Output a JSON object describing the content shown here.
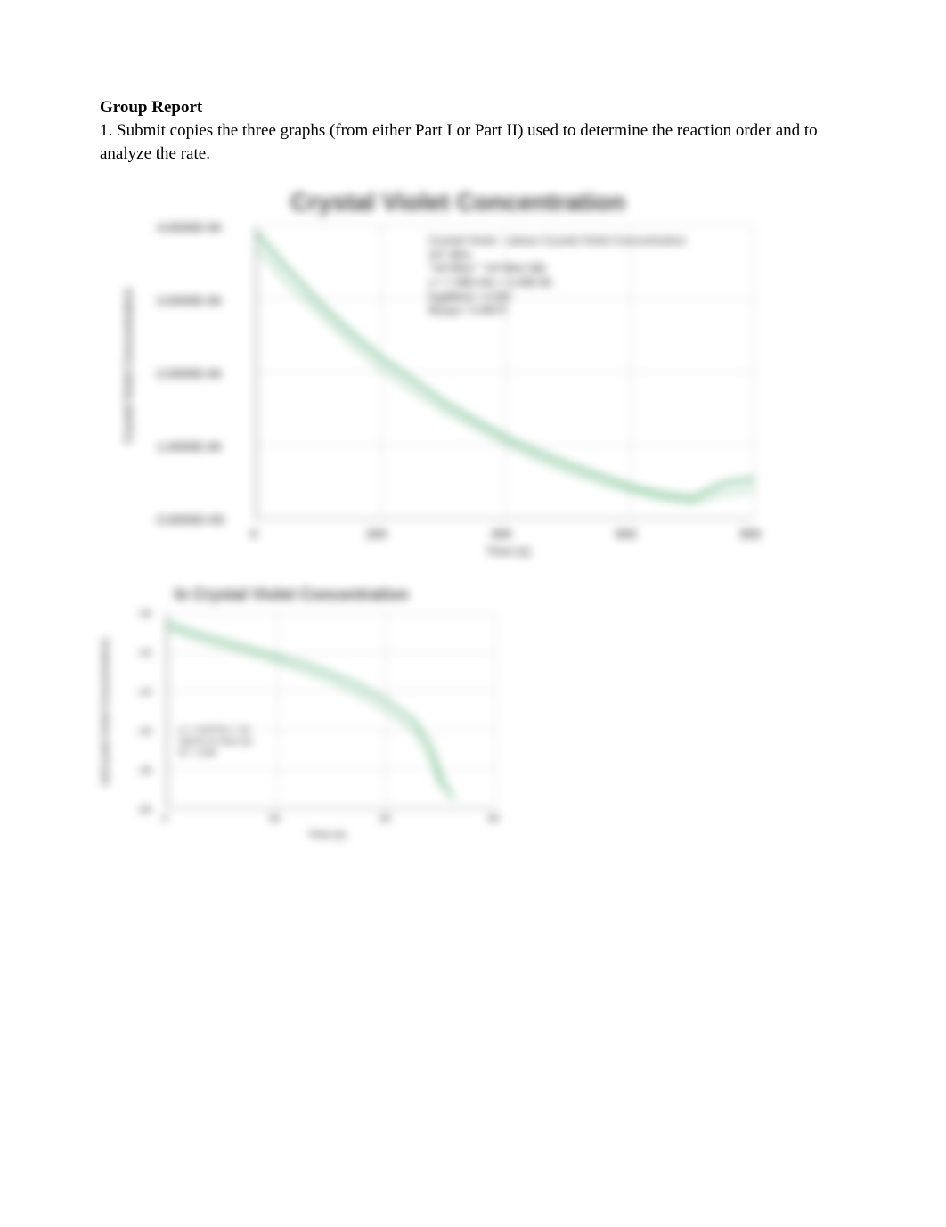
{
  "header": {
    "title": "Group Report",
    "instruction": "1. Submit copies the three graphs (from either Part I or Part II) used to determine the reaction order and to analyze the rate."
  },
  "chart1": {
    "type": "line",
    "title": "Crystal Violet Concentration",
    "title_fontsize": 28,
    "title_color": "#4a4a4a",
    "xlabel": "Time (s)",
    "ylabel": "Crystal Violet Concentration",
    "label_fontsize": 13,
    "x_ticks": [
      "0",
      "200",
      "400",
      "600",
      "800"
    ],
    "y_ticks": [
      "0.0000E+00",
      "1.0000E-06",
      "2.0000E-06",
      "3.0000E-06",
      "4.0000E-06"
    ],
    "xlim": [
      0,
      800
    ],
    "ylim": [
      0,
      4e-06
    ],
    "legend": {
      "lines": [
        "Crystal Violet - values Crystal Violet Concentration",
        "10^ M/m",
        "\"10^M/m\" \"10^M/m\"(B)",
        "y = 7.48E-04x + 0.40E-06",
        "log(M/m) + 0.097",
        "R(sqr) = 0.967/7"
      ],
      "fontsize": 12,
      "color": "#6a6a6a"
    },
    "series": [
      {
        "name": "concentration-curve-1",
        "color": "#8fc9a3",
        "stroke_width": 5,
        "points": [
          [
            0,
            3.9e-06
          ],
          [
            50,
            3.4e-06
          ],
          [
            100,
            2.95e-06
          ],
          [
            150,
            2.55e-06
          ],
          [
            200,
            2.2e-06
          ],
          [
            250,
            1.9e-06
          ],
          [
            300,
            1.6e-06
          ],
          [
            350,
            1.35e-06
          ],
          [
            400,
            1.12e-06
          ],
          [
            450,
            9.2e-07
          ],
          [
            500,
            7.5e-07
          ],
          [
            550,
            6e-07
          ],
          [
            600,
            4.5e-07
          ],
          [
            650,
            3.5e-07
          ],
          [
            700,
            3e-07
          ],
          [
            750,
            5e-07
          ],
          [
            800,
            5.5e-07
          ]
        ]
      },
      {
        "name": "concentration-curve-2",
        "color": "#a8d4b5",
        "stroke_width": 3,
        "points": [
          [
            0,
            3.7e-06
          ],
          [
            50,
            3.2e-06
          ],
          [
            100,
            2.8e-06
          ],
          [
            150,
            2.4e-06
          ],
          [
            200,
            2.05e-06
          ],
          [
            250,
            1.75e-06
          ],
          [
            300,
            1.48e-06
          ],
          [
            350,
            1.25e-06
          ],
          [
            400,
            1.02e-06
          ],
          [
            450,
            8.2e-07
          ],
          [
            500,
            6.5e-07
          ],
          [
            550,
            5e-07
          ],
          [
            600,
            3.8e-07
          ],
          [
            650,
            2.8e-07
          ],
          [
            700,
            2.2e-07
          ],
          [
            750,
            3.5e-07
          ],
          [
            800,
            4e-07
          ]
        ]
      }
    ],
    "background_color": "#ffffff",
    "grid_color": "#d5d5d5"
  },
  "chart2": {
    "type": "line",
    "title": "ln Crystal Violet Concentration",
    "title_fontsize": 18,
    "title_color": "#4a4a4a",
    "xlabel": "Time (s)",
    "ylabel": "ln(Crystal Violet Concentration)",
    "label_fontsize": 11,
    "x_ticks": [
      "0",
      "20",
      "40",
      "60"
    ],
    "y_ticks": [
      "-20",
      "-18",
      "-16",
      "-14",
      "-12",
      "-10"
    ],
    "xlim": [
      0,
      60
    ],
    "ylim": [
      -20,
      -10
    ],
    "legend": {
      "lines": [
        "y = -0.0171x + 12",
        "ln(CV) vs time (s)",
        "R² = 0.99"
      ],
      "fontsize": 10,
      "color": "#6a6a6a"
    },
    "series": [
      {
        "name": "ln-curve-1",
        "color": "#8fc9a3",
        "stroke_width": 4,
        "points": [
          [
            0,
            -10.5
          ],
          [
            5,
            -11
          ],
          [
            10,
            -11.4
          ],
          [
            15,
            -11.8
          ],
          [
            20,
            -12.2
          ],
          [
            25,
            -12.6
          ],
          [
            30,
            -13.1
          ],
          [
            35,
            -13.7
          ],
          [
            40,
            -14.5
          ],
          [
            45,
            -15.5
          ],
          [
            48,
            -16.8
          ],
          [
            50,
            -18.5
          ],
          [
            52,
            -19.5
          ]
        ]
      },
      {
        "name": "ln-curve-2",
        "color": "#a8d4b5",
        "stroke_width": 3,
        "points": [
          [
            0,
            -10.8
          ],
          [
            5,
            -11.3
          ],
          [
            10,
            -11.7
          ],
          [
            15,
            -12.1
          ],
          [
            20,
            -12.5
          ],
          [
            25,
            -13
          ],
          [
            30,
            -13.5
          ],
          [
            35,
            -14.2
          ],
          [
            40,
            -15
          ],
          [
            45,
            -16
          ],
          [
            48,
            -17.5
          ],
          [
            50,
            -19
          ]
        ]
      }
    ],
    "background_color": "#ffffff",
    "grid_color": "#d5d5d5"
  }
}
